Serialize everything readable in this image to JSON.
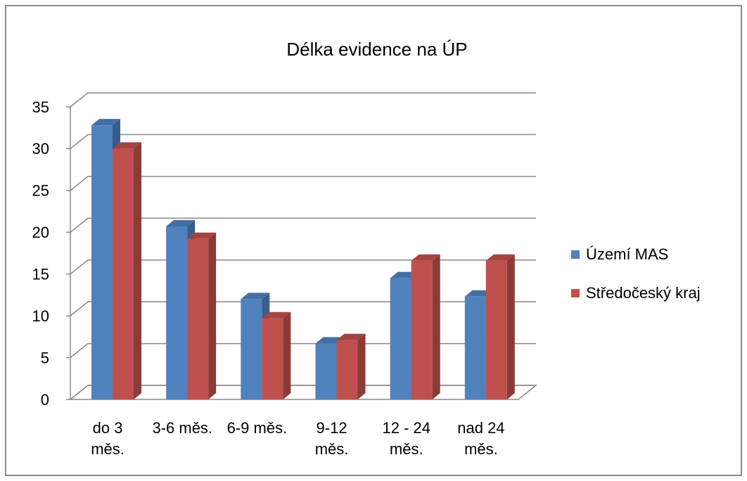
{
  "chart_data": {
    "type": "bar3d",
    "title": "Délka evidence na ÚP",
    "categories": [
      "do 3 měs.",
      "3-6 měs.",
      "6-9 měs.",
      "9-12 měs.",
      "12 - 24 měs.",
      "nad 24 měs."
    ],
    "series": [
      {
        "name": "Území MAS",
        "color": "#4f81bd",
        "values": [
          32.8,
          20.7,
          12,
          6.7,
          14.5,
          12.3
        ]
      },
      {
        "name": "Středočeský kraj",
        "color": "#c0504d",
        "values": [
          30,
          19.2,
          9.7,
          7.1,
          16.6,
          16.6
        ]
      }
    ],
    "ylim": [
      0,
      35
    ],
    "yticks": [
      0,
      5,
      10,
      15,
      20,
      25,
      30,
      35
    ],
    "grid": true,
    "legend": "right"
  }
}
